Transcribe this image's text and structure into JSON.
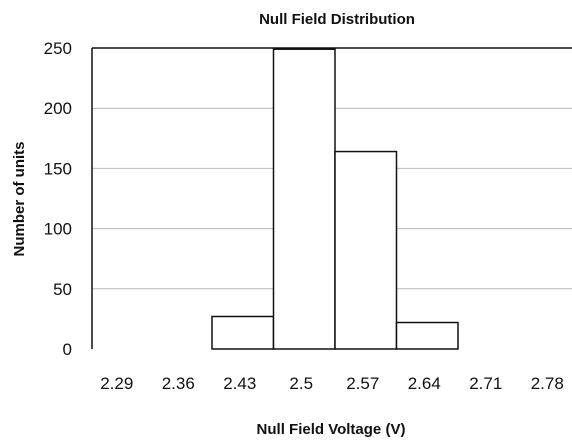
{
  "chart_data": {
    "type": "bar",
    "title": "Null Field Distribution",
    "xlabel": "Null Field Voltage (V)",
    "ylabel": "Number of units",
    "categories": [
      "2.29",
      "2.36",
      "2.43",
      "2.5",
      "2.57",
      "2.64",
      "2.71",
      "2.78"
    ],
    "values": [
      0,
      0,
      27,
      249,
      164,
      22,
      0,
      0
    ],
    "ylim": [
      0,
      250
    ],
    "yticks": [
      0,
      50,
      100,
      150,
      200,
      250
    ],
    "grid": true,
    "legend": "none",
    "colors": {
      "bar_fill": "#ffffff",
      "bar_stroke": "#111111",
      "grid": "#b9b9b9",
      "axis": "#111111"
    }
  }
}
